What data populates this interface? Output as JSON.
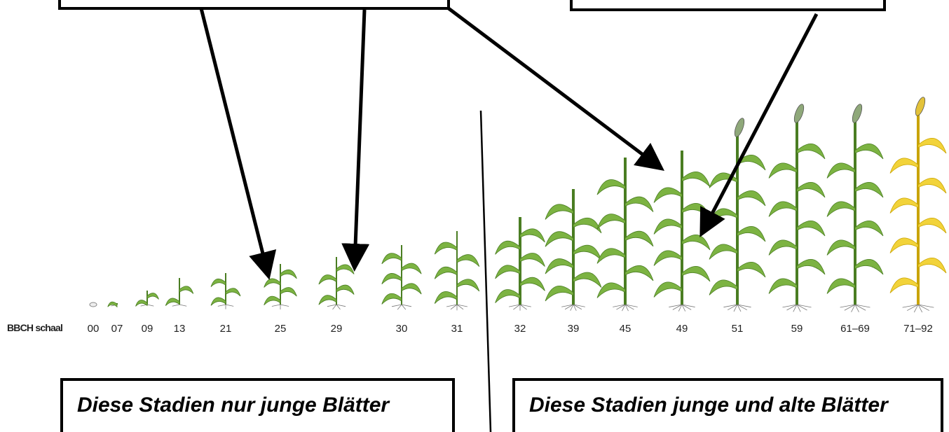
{
  "scale_label": "BBCH schaal",
  "stages": [
    "00",
    "07",
    "09",
    "13",
    "21",
    "25",
    "29",
    "30",
    "31",
    "32",
    "39",
    "45",
    "49",
    "51",
    "59",
    "61–69",
    "71–92"
  ],
  "boxes": {
    "left": "Diese Stadien nur junge Blätter",
    "right": "Diese Stadien junge und alte Blätter"
  }
}
